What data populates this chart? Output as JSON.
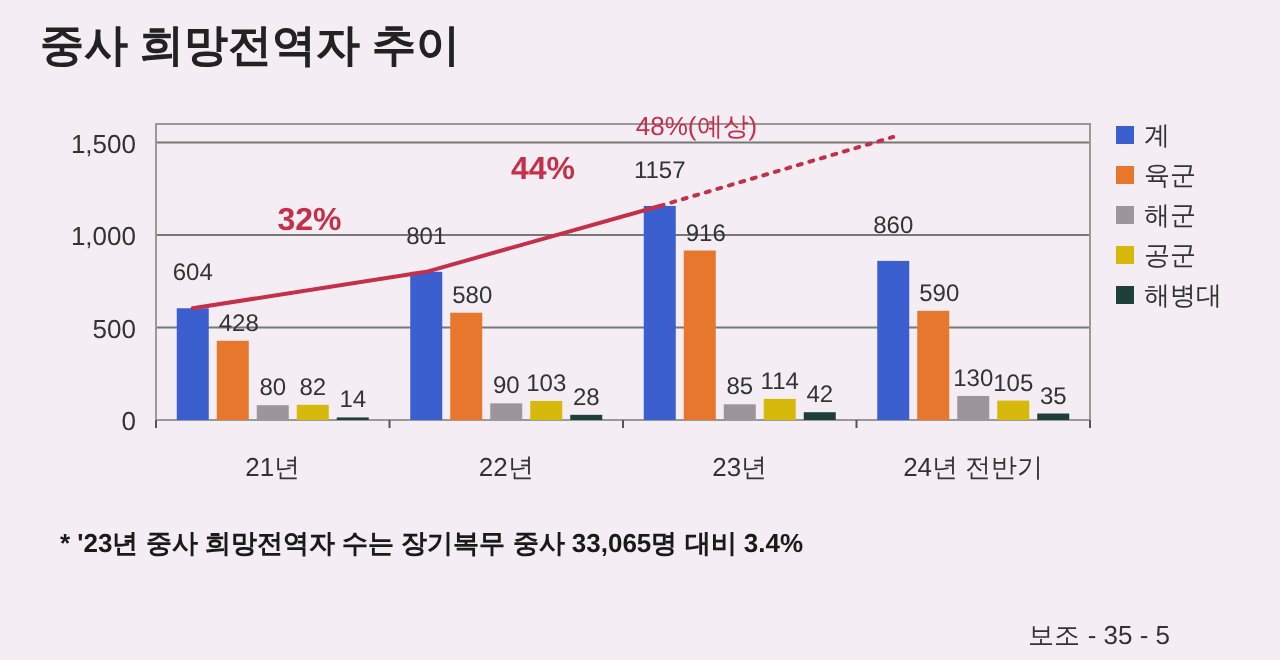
{
  "chart_data": {
    "type": "bar",
    "title": "중사 희망전역자 추이",
    "categories": [
      "21년",
      "22년",
      "23년",
      "24년 전반기"
    ],
    "series": [
      {
        "name": "계",
        "color": "#3b5fcf",
        "values": [
          604,
          801,
          1157,
          860
        ],
        "value_labels": [
          "604",
          "801",
          "1157",
          "860"
        ]
      },
      {
        "name": "육군",
        "color": "#e8772e",
        "values": [
          428,
          580,
          916,
          590
        ],
        "value_labels": [
          "428",
          "580",
          "916",
          "590"
        ]
      },
      {
        "name": "해군",
        "color": "#9c969c",
        "values": [
          80,
          90,
          85,
          130
        ],
        "value_labels": [
          "80",
          "90",
          "85",
          "130"
        ]
      },
      {
        "name": "공군",
        "color": "#d6b90a",
        "values": [
          82,
          103,
          114,
          105
        ],
        "value_labels": [
          "82",
          "103",
          "114",
          "105"
        ]
      },
      {
        "name": "해병대",
        "color": "#1f3f3a",
        "values": [
          14,
          28,
          42,
          35
        ],
        "value_labels": [
          "14",
          "28",
          "42",
          "35"
        ]
      },
      {
        "type": "line",
        "color": "#c4304a",
        "line_style": "solid",
        "values": [
          604,
          801,
          1157,
          null
        ]
      },
      {
        "type": "line",
        "color": "#c4304a",
        "line_style": "dotted",
        "values": [
          null,
          null,
          1157,
          1530
        ]
      }
    ],
    "ylim": [
      0,
      1600
    ],
    "yticks": [
      0,
      500,
      {
        "value": 1000,
        "label": "1,000"
      },
      {
        "value": 1500,
        "label": "1,500"
      }
    ],
    "grid": "y",
    "legend": "right",
    "annotations": [
      "32%",
      "44%",
      "48%(예상)",
      "* '23년 중사 희망전역자 수는 장기복무 중사 33,065명 대비 3.4%",
      "보조 - 35 - 5"
    ]
  }
}
